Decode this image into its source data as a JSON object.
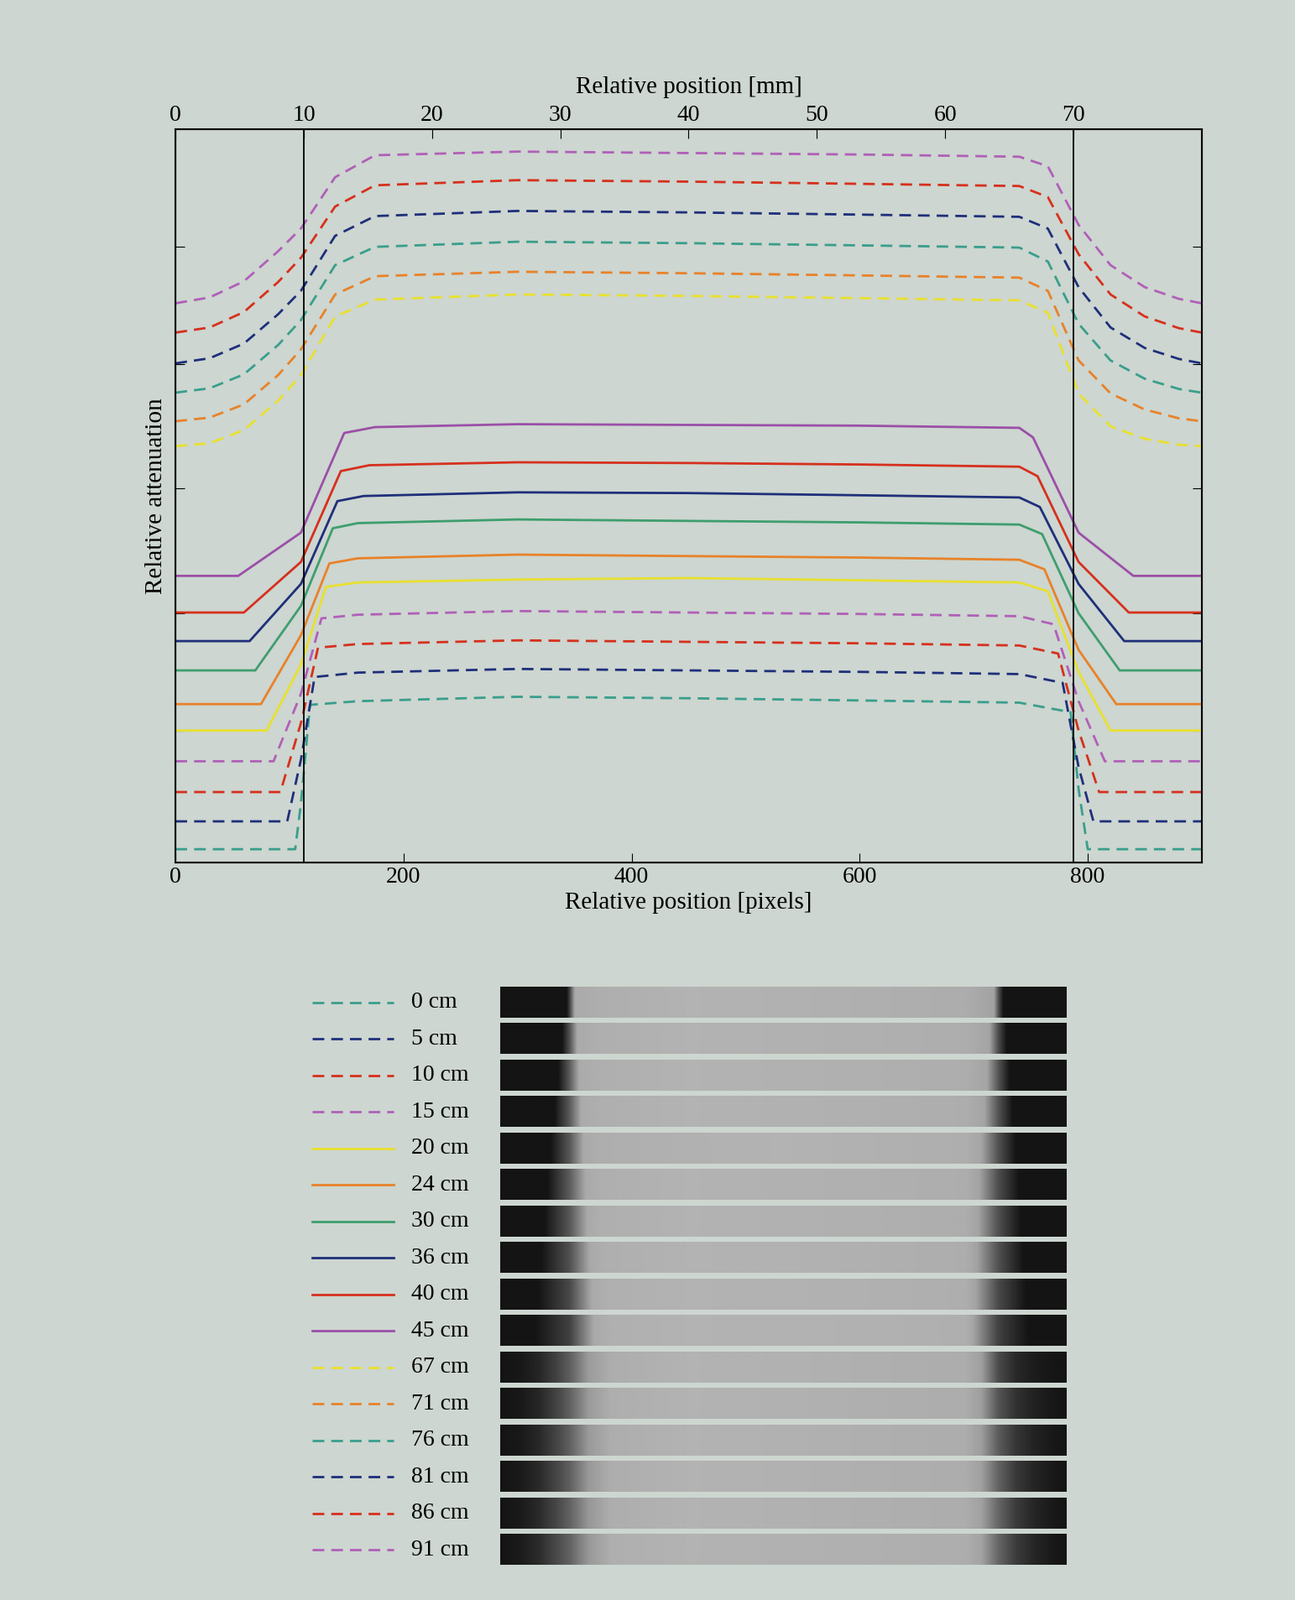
{
  "chart_data": {
    "type": "line",
    "xlabel": "Relative position [pixels]",
    "x2label": "Relative position [mm]",
    "ylabel": "Relative attenuation",
    "xlim": [
      0,
      900
    ],
    "xticks": [
      0,
      200,
      400,
      600,
      800
    ],
    "x2lim": [
      0,
      80
    ],
    "x2ticks": [
      0,
      10,
      20,
      30,
      40,
      50,
      60,
      70
    ],
    "ylim": [
      0,
      100
    ],
    "yticks": [
      18,
      34,
      51,
      68,
      84
    ],
    "tick_labels": "x",
    "vertical_lines": [
      10,
      70
    ],
    "series": [
      {
        "name": "0 cm",
        "color": "#3a9e8c",
        "line_style": "dashed",
        "x": [
          0,
          105,
          110,
          118,
          160,
          300,
          450,
          600,
          740,
          785,
          792,
          800,
          900
        ],
        "values": [
          1.8,
          1.8,
          8,
          21.5,
          22.0,
          22.6,
          22.4,
          22.1,
          21.8,
          20.5,
          10,
          1.8,
          1.8
        ]
      },
      {
        "name": "5 cm",
        "color": "#1f2f7a",
        "line_style": "dashed",
        "x": [
          0,
          98,
          110,
          122,
          160,
          300,
          450,
          600,
          740,
          778,
          792,
          805,
          900
        ],
        "values": [
          5.6,
          5.6,
          14,
          25.3,
          25.9,
          26.4,
          26.2,
          26.0,
          25.7,
          24.5,
          13,
          5.6,
          5.6
        ]
      },
      {
        "name": "10 cm",
        "color": "#d6301e",
        "line_style": "dashed",
        "x": [
          0,
          92,
          110,
          125,
          160,
          300,
          450,
          600,
          740,
          774,
          792,
          810,
          900
        ],
        "values": [
          9.6,
          9.6,
          19,
          29.3,
          29.8,
          30.3,
          30.1,
          29.9,
          29.6,
          28.5,
          18,
          9.6,
          9.6
        ]
      },
      {
        "name": "15 cm",
        "color": "#b060b8",
        "line_style": "dashed",
        "x": [
          0,
          86,
          110,
          128,
          160,
          300,
          450,
          600,
          740,
          770,
          792,
          815,
          900
        ],
        "values": [
          13.8,
          13.8,
          23,
          33.3,
          33.8,
          34.3,
          34.1,
          33.9,
          33.6,
          32.5,
          22,
          13.8,
          13.8
        ]
      },
      {
        "name": "20 cm",
        "color": "#e8e030",
        "line_style": "solid",
        "x": [
          0,
          80,
          110,
          132,
          160,
          300,
          450,
          600,
          740,
          765,
          792,
          820,
          900
        ],
        "values": [
          18,
          18,
          27,
          37.6,
          38.2,
          38.6,
          38.8,
          38.5,
          38.2,
          37,
          26,
          18,
          18
        ]
      },
      {
        "name": "24 cm",
        "color": "#e8822a",
        "line_style": "solid",
        "x": [
          0,
          75,
          110,
          135,
          160,
          300,
          450,
          600,
          740,
          762,
          792,
          825,
          900
        ],
        "values": [
          21.6,
          21.6,
          31,
          40.8,
          41.5,
          42.0,
          41.8,
          41.6,
          41.3,
          40,
          29,
          21.6,
          21.6
        ]
      },
      {
        "name": "30 cm",
        "color": "#3e9e6e",
        "line_style": "solid",
        "x": [
          0,
          70,
          110,
          138,
          160,
          300,
          450,
          600,
          740,
          760,
          792,
          828,
          900
        ],
        "values": [
          26.2,
          26.2,
          35,
          45.6,
          46.3,
          46.8,
          46.6,
          46.4,
          46.1,
          44.8,
          34,
          26.2,
          26.2
        ]
      },
      {
        "name": "36 cm",
        "color": "#1f2f7a",
        "line_style": "solid",
        "x": [
          0,
          65,
          110,
          142,
          165,
          300,
          450,
          600,
          740,
          758,
          792,
          832,
          900
        ],
        "values": [
          30.2,
          30.2,
          38,
          49.3,
          50.0,
          50.5,
          50.4,
          50.1,
          49.8,
          48.5,
          38,
          30.2,
          30.2
        ]
      },
      {
        "name": "40 cm",
        "color": "#d6301e",
        "line_style": "solid",
        "x": [
          0,
          60,
          110,
          145,
          170,
          300,
          450,
          600,
          740,
          756,
          792,
          836,
          900
        ],
        "values": [
          34.1,
          34.1,
          41,
          53.4,
          54.2,
          54.6,
          54.5,
          54.3,
          54,
          52.7,
          41,
          34.1,
          34.1
        ]
      },
      {
        "name": "45 cm",
        "color": "#9b4fa8",
        "line_style": "solid",
        "x": [
          0,
          55,
          110,
          148,
          175,
          300,
          450,
          600,
          740,
          752,
          792,
          840,
          900
        ],
        "values": [
          39.1,
          39.1,
          45,
          58.6,
          59.4,
          59.8,
          59.7,
          59.6,
          59.3,
          58,
          45,
          39.1,
          39.1
        ]
      },
      {
        "name": "67 cm",
        "color": "#e8e030",
        "line_style": "dashed",
        "x": [
          0,
          30,
          60,
          90,
          110,
          140,
          175,
          300,
          450,
          600,
          740,
          765,
          792,
          820,
          850,
          880,
          900
        ],
        "values": [
          56.8,
          57.2,
          59,
          63,
          66.5,
          74.5,
          76.8,
          77.5,
          77.3,
          77.0,
          76.7,
          75,
          64,
          59.5,
          57.8,
          57.0,
          56.8
        ]
      },
      {
        "name": "71 cm",
        "color": "#e8822a",
        "line_style": "dashed",
        "x": [
          0,
          30,
          60,
          90,
          110,
          140,
          175,
          300,
          450,
          600,
          740,
          765,
          792,
          820,
          850,
          880,
          900
        ],
        "values": [
          60.2,
          60.7,
          62.5,
          66.5,
          70,
          77.5,
          80,
          80.6,
          80.4,
          80.1,
          79.8,
          78,
          68.5,
          64,
          61.8,
          60.6,
          60.2
        ]
      },
      {
        "name": "76 cm",
        "color": "#3a9e8c",
        "line_style": "dashed",
        "x": [
          0,
          30,
          60,
          90,
          110,
          140,
          175,
          300,
          450,
          600,
          740,
          765,
          792,
          820,
          850,
          880,
          900
        ],
        "values": [
          64.1,
          64.7,
          66.6,
          70.6,
          74,
          81.5,
          84,
          84.7,
          84.5,
          84.2,
          83.9,
          82,
          73.5,
          68.5,
          66,
          64.6,
          64.1
        ]
      },
      {
        "name": "81 cm",
        "color": "#1f2f7a",
        "line_style": "dashed",
        "x": [
          0,
          30,
          60,
          90,
          110,
          140,
          175,
          300,
          450,
          600,
          740,
          765,
          792,
          820,
          850,
          880,
          900
        ],
        "values": [
          68.1,
          68.8,
          70.8,
          74.8,
          78,
          85.5,
          88.2,
          88.9,
          88.7,
          88.4,
          88.1,
          86.5,
          78.5,
          73,
          70.2,
          68.7,
          68.1
        ]
      },
      {
        "name": "86 cm",
        "color": "#d6301e",
        "line_style": "dashed",
        "x": [
          0,
          30,
          60,
          90,
          110,
          140,
          175,
          300,
          450,
          600,
          740,
          765,
          792,
          820,
          850,
          880,
          900
        ],
        "values": [
          72.3,
          73.0,
          75.1,
          79.2,
          82.5,
          89.5,
          92.4,
          93.1,
          92.9,
          92.6,
          92.3,
          90.8,
          83,
          77.5,
          74.5,
          72.9,
          72.3
        ]
      },
      {
        "name": "91 cm",
        "color": "#b060b8",
        "line_style": "dashed",
        "x": [
          0,
          30,
          60,
          90,
          110,
          140,
          175,
          300,
          450,
          600,
          740,
          765,
          792,
          820,
          850,
          880,
          900
        ],
        "values": [
          76.3,
          77.1,
          79.3,
          83.4,
          86.5,
          93.5,
          96.5,
          97.0,
          96.8,
          96.6,
          96.3,
          95,
          87,
          81.5,
          78.5,
          76.9,
          76.3
        ]
      }
    ]
  }
}
